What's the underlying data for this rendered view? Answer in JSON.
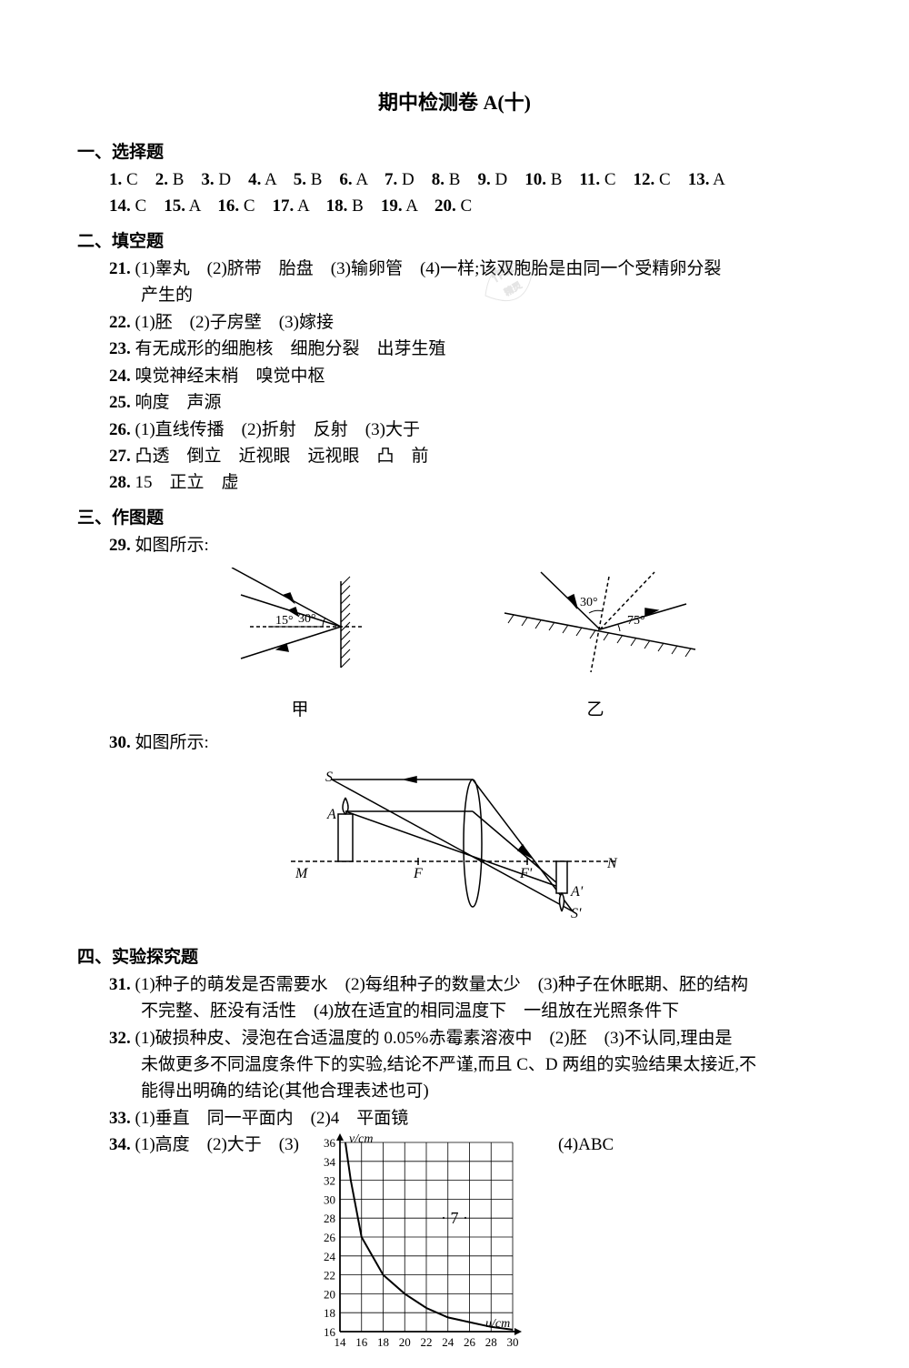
{
  "title": "期中检测卷 A(十)",
  "sections": {
    "s1": {
      "header": "一、选择题",
      "line1": "1. C　2. B　3. D　4. A　5. B　6. A　7. D　8. B　9. D　10. B　11. C　12. C　13. A",
      "line2": "14. C　15. A　16. C　17. A　18. B　19. A　20. C"
    },
    "s2": {
      "header": "二、填空题",
      "q21a": "21. (1)睾丸　(2)脐带　胎盘　(3)输卵管　(4)一样;该双胞胎是由同一个受精卵分裂",
      "q21b": "产生的",
      "q22": "22. (1)胚　(2)子房壁　(3)嫁接",
      "q23": "23. 有无成形的细胞核　细胞分裂　出芽生殖",
      "q24": "24. 嗅觉神经末梢　嗅觉中枢",
      "q25": "25. 响度　声源",
      "q26": "26. (1)直线传播　(2)折射　反射　(3)大于",
      "q27": "27. 凸透　倒立　近视眼　远视眼　凸　前",
      "q28": "28. 15　正立　虚"
    },
    "s3": {
      "header": "三、作图题",
      "q29": "29. 如图所示:",
      "q30": "30. 如图所示:",
      "fig_labels": {
        "jia": "甲",
        "yi": "乙"
      },
      "fig29a": {
        "angle1": "15°",
        "angle2": "30°"
      },
      "fig29b": {
        "angle1": "30°",
        "angle2": "75°"
      },
      "fig30": {
        "S": "S",
        "A": "A",
        "M": "M",
        "F": "F",
        "Fp": "F'",
        "N": "N",
        "Ap": "A'",
        "Sp": "S'"
      }
    },
    "s4": {
      "header": "四、实验探究题",
      "q31a": "31. (1)种子的萌发是否需要水　(2)每组种子的数量太少　(3)种子在休眠期、胚的结构",
      "q31b": "不完整、胚没有活性　(4)放在适宜的相同温度下　一组放在光照条件下",
      "q32a": "32. (1)破损种皮、浸泡在合适温度的 0.05%赤霉素溶液中　(2)胚　(3)不认同,理由是",
      "q32b": "未做更多不同温度条件下的实验,结论不严谨,而且 C、D 两组的实验结果太接近,不",
      "q32c": "能得出明确的结论(其他合理表述也可)",
      "q33": "33. (1)垂直　同一平面内　(2)4　平面镜",
      "q34_pre": "34. (1)高度　(2)大于　(3)",
      "q34_post": "(4)ABC"
    },
    "chart": {
      "ylabel": "v/cm",
      "xlabel": "u/cm",
      "ylim": [
        16,
        36
      ],
      "ystep": 2,
      "xlim": [
        14,
        30
      ],
      "xstep": 2,
      "yticks": [
        16,
        18,
        20,
        22,
        24,
        26,
        28,
        30,
        32,
        34,
        36
      ],
      "xticks": [
        14,
        16,
        18,
        20,
        22,
        24,
        26,
        28,
        30
      ],
      "curve": [
        [
          14.5,
          36
        ],
        [
          15,
          32
        ],
        [
          16,
          26
        ],
        [
          18,
          22
        ],
        [
          20,
          20
        ],
        [
          22,
          18.5
        ],
        [
          24,
          17.5
        ],
        [
          26,
          17
        ],
        [
          28,
          16.5
        ],
        [
          30,
          16.2
        ]
      ],
      "grid_color": "#000000",
      "curve_color": "#000000",
      "bg": "#ffffff"
    }
  },
  "page_number": "· 7 ·"
}
